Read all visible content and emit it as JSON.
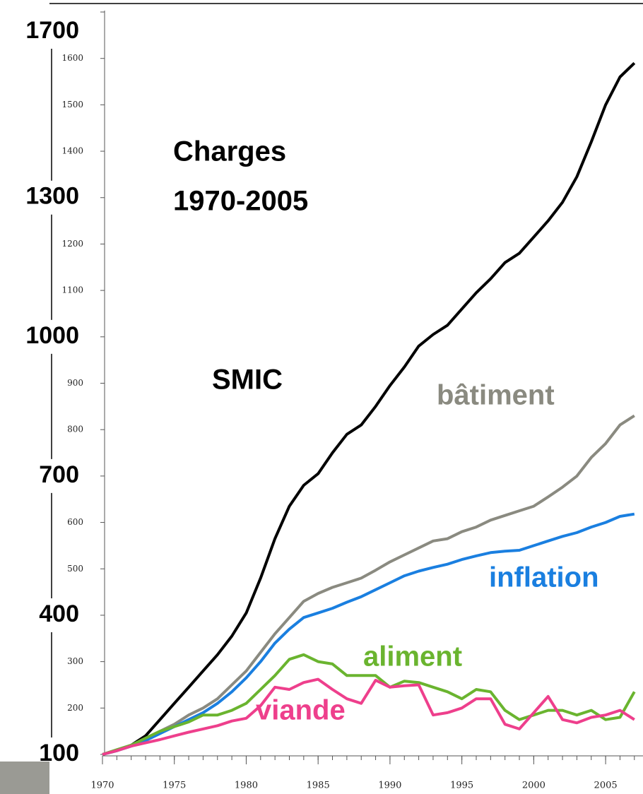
{
  "chart_data": {
    "type": "line",
    "title_lines": [
      "Charges",
      "1970-2005"
    ],
    "x": [
      1970,
      1971,
      1972,
      1973,
      1974,
      1975,
      1976,
      1977,
      1978,
      1979,
      1980,
      1981,
      1982,
      1983,
      1984,
      1985,
      1986,
      1987,
      1988,
      1989,
      1990,
      1991,
      1992,
      1993,
      1994,
      1995,
      1996,
      1997,
      1998,
      1999,
      2000,
      2001,
      2002,
      2003,
      2004,
      2005,
      2006,
      2007
    ],
    "xlim": [
      1970,
      2007.6
    ],
    "xticks": [
      1970,
      1975,
      1980,
      1985,
      1990,
      1995,
      2000,
      2005
    ],
    "ylim": [
      100,
      1700
    ],
    "yticks": [
      100,
      400,
      700,
      1000,
      1300,
      1700
    ],
    "yticks_minor": [
      200,
      300,
      500,
      600,
      800,
      900,
      1100,
      1200,
      1400,
      1500,
      1600
    ],
    "series": [
      {
        "name": "SMIC",
        "color": "#000000",
        "values": [
          100,
          108,
          120,
          140,
          175,
          210,
          245,
          280,
          315,
          355,
          405,
          480,
          565,
          635,
          680,
          705,
          750,
          790,
          810,
          850,
          895,
          935,
          980,
          1005,
          1025,
          1060,
          1095,
          1125,
          1160,
          1180,
          1215,
          1250,
          1290,
          1345,
          1420,
          1500,
          1560,
          1590
        ]
      },
      {
        "name": "bâtiment",
        "color": "#8a8a80",
        "values": [
          100,
          110,
          120,
          135,
          150,
          165,
          185,
          200,
          220,
          250,
          280,
          320,
          360,
          395,
          430,
          447,
          460,
          470,
          480,
          497,
          515,
          530,
          545,
          560,
          565,
          580,
          590,
          605,
          615,
          625,
          635,
          655,
          676,
          700,
          740,
          770,
          810,
          830
        ]
      },
      {
        "name": "inflation",
        "color": "#1a7fe0",
        "values": [
          100,
          108,
          118,
          130,
          145,
          160,
          175,
          190,
          210,
          235,
          265,
          300,
          340,
          370,
          395,
          405,
          415,
          428,
          440,
          455,
          470,
          485,
          495,
          503,
          510,
          520,
          528,
          535,
          538,
          540,
          550,
          560,
          570,
          578,
          590,
          600,
          613,
          618
        ]
      },
      {
        "name": "aliment",
        "color": "#6ab42f",
        "values": [
          100,
          110,
          120,
          135,
          150,
          160,
          170,
          185,
          185,
          195,
          210,
          240,
          270,
          305,
          315,
          300,
          295,
          270,
          270,
          270,
          245,
          258,
          255,
          245,
          235,
          220,
          240,
          235,
          195,
          175,
          185,
          195,
          195,
          185,
          195,
          175,
          180,
          235
        ]
      },
      {
        "name": "viande",
        "color": "#ee3f8c",
        "values": [
          100,
          108,
          118,
          125,
          132,
          140,
          148,
          155,
          162,
          172,
          178,
          205,
          245,
          240,
          255,
          262,
          240,
          220,
          210,
          260,
          245,
          248,
          250,
          185,
          190,
          200,
          220,
          220,
          165,
          155,
          190,
          225,
          175,
          168,
          180,
          185,
          195,
          175
        ]
      }
    ]
  }
}
